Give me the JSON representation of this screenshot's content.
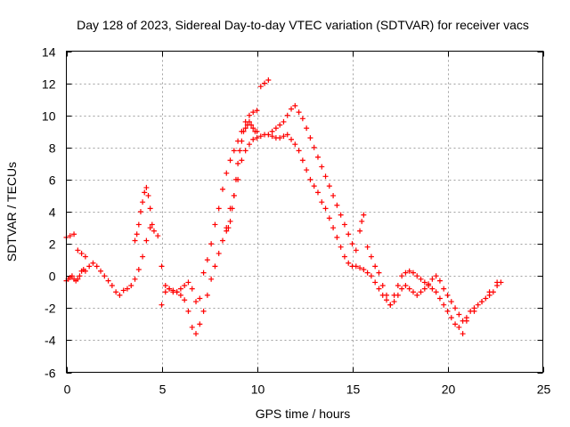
{
  "chart_data": {
    "type": "scatter",
    "title": "Day 128 of 2023, Sidereal Day-to-day VTEC variation (SDTVAR) for receiver vacs",
    "xlabel": "GPS time / hours",
    "ylabel": "SDTVAR / TECUs",
    "xlim": [
      0,
      25
    ],
    "ylim": [
      -6,
      14
    ],
    "xticks": [
      0,
      5,
      10,
      15,
      20,
      25
    ],
    "yticks": [
      -6,
      -4,
      -2,
      0,
      2,
      4,
      6,
      8,
      10,
      12,
      14
    ],
    "grid": true,
    "marker": "+",
    "color": "#ff0000",
    "series": [
      {
        "name": "SDTVAR",
        "x": [
          0.0,
          0.1,
          0.2,
          0.3,
          0.4,
          0.5,
          0.6,
          0.7,
          0.8,
          0.9,
          1.0,
          1.2,
          1.4,
          1.6,
          1.8,
          2.0,
          2.2,
          2.4,
          2.6,
          2.8,
          3.0,
          3.2,
          3.4,
          3.6,
          3.8,
          4.0,
          4.2,
          4.4,
          4.6,
          4.8,
          5.0,
          5.2,
          5.4,
          5.6,
          5.8,
          6.0,
          6.2,
          6.4,
          6.6,
          6.8,
          7.0,
          7.2,
          7.4,
          7.6,
          7.8,
          8.0,
          8.2,
          8.4,
          8.6,
          8.8,
          9.0,
          9.2,
          9.4,
          9.6,
          9.8,
          10.0,
          10.2,
          10.4,
          10.6,
          10.8,
          11.0,
          11.2,
          11.4,
          11.6,
          11.8,
          12.0,
          12.2,
          12.4,
          12.6,
          12.8,
          13.0,
          13.2,
          13.4,
          13.6,
          13.8,
          14.0,
          14.2,
          14.4,
          14.6,
          14.8,
          15.0,
          15.2,
          15.4,
          15.6,
          15.8,
          16.0,
          16.2,
          16.4,
          16.6,
          16.8,
          17.0,
          17.2,
          17.4,
          17.6,
          17.8,
          18.0,
          18.2,
          18.4,
          18.6,
          18.8,
          19.0,
          19.2,
          19.4,
          19.6,
          19.8,
          20.0,
          20.2,
          20.4,
          20.6,
          20.8,
          21.0,
          21.2,
          21.4,
          21.6,
          21.8,
          22.0,
          22.2,
          22.4,
          22.6,
          22.8,
          0.0,
          0.2,
          0.4,
          0.6,
          0.8,
          1.0,
          3.6,
          3.7,
          3.8,
          3.9,
          4.0,
          4.1,
          4.2,
          4.3,
          4.4,
          4.5,
          5.0,
          5.2,
          5.4,
          5.6,
          5.8,
          6.0,
          6.2,
          6.4,
          6.6,
          6.8,
          7.0,
          7.2,
          7.4,
          7.6,
          7.8,
          8.0,
          8.2,
          8.4,
          8.6,
          8.8,
          9.0,
          9.2,
          9.4,
          9.6,
          9.8,
          10.0,
          8.4,
          8.5,
          8.6,
          8.7,
          8.8,
          8.9,
          9.0,
          9.1,
          9.2,
          9.3,
          9.4,
          9.5,
          9.6,
          9.7,
          9.8,
          9.9,
          10.0,
          10.2,
          10.4,
          10.6,
          10.8,
          11.0,
          11.2,
          11.4,
          11.6,
          11.8,
          12.0,
          12.2,
          12.4,
          12.6,
          12.8,
          13.0,
          13.2,
          13.4,
          13.6,
          13.8,
          14.0,
          14.2,
          14.4,
          14.6,
          14.8,
          15.0,
          15.2,
          15.4,
          15.5,
          15.6,
          15.8,
          16.0,
          16.2,
          16.4,
          16.6,
          16.8,
          17.0,
          17.2,
          17.4,
          17.6,
          17.8,
          18.0,
          18.2,
          18.4,
          18.6,
          18.8,
          19.0,
          19.2,
          19.4,
          19.6,
          19.8,
          20.0,
          20.2,
          20.4,
          20.6,
          20.8,
          21.0,
          21.4,
          21.8,
          22.2,
          22.6
        ],
        "y": [
          -0.3,
          -0.2,
          -0.1,
          0.0,
          -0.2,
          -0.3,
          -0.2,
          0.0,
          0.3,
          0.4,
          0.3,
          0.6,
          0.8,
          0.6,
          0.3,
          0.0,
          -0.3,
          -0.6,
          -1.0,
          -1.2,
          -0.9,
          -0.8,
          -0.6,
          -0.2,
          0.4,
          1.2,
          2.2,
          3.0,
          2.8,
          2.5,
          -1.8,
          -1.0,
          -0.8,
          -0.9,
          -1.0,
          -1.2,
          -1.5,
          -2.2,
          -3.2,
          -3.6,
          -3.0,
          -2.2,
          -1.2,
          -0.2,
          0.6,
          1.4,
          2.2,
          3.0,
          4.2,
          5.0,
          6.0,
          7.2,
          7.8,
          8.2,
          8.5,
          8.6,
          8.7,
          8.8,
          8.8,
          8.7,
          8.6,
          8.6,
          8.7,
          8.8,
          8.5,
          8.2,
          7.8,
          7.2,
          6.6,
          6.0,
          5.6,
          5.2,
          4.6,
          4.2,
          3.6,
          3.0,
          2.4,
          1.8,
          1.2,
          0.8,
          0.6,
          0.6,
          0.5,
          0.4,
          0.2,
          0.0,
          -0.4,
          -0.8,
          -1.2,
          -1.5,
          -1.8,
          -1.6,
          -1.2,
          -0.8,
          -0.6,
          -0.8,
          -1.0,
          -1.2,
          -1.0,
          -0.8,
          -0.5,
          -0.2,
          0.0,
          -0.3,
          -0.8,
          -1.2,
          -1.6,
          -2.0,
          -2.4,
          -2.8,
          -2.6,
          -2.2,
          -2.0,
          -1.8,
          -1.6,
          -1.4,
          -1.2,
          -1.0,
          -0.6,
          -0.4,
          2.4,
          2.5,
          2.6,
          1.6,
          1.4,
          1.2,
          2.2,
          2.6,
          3.2,
          4.0,
          4.6,
          5.2,
          5.5,
          5.0,
          4.2,
          3.2,
          0.6,
          -0.6,
          -0.8,
          -1.0,
          -1.0,
          -0.8,
          -0.6,
          -0.4,
          -0.8,
          -1.6,
          -1.4,
          0.2,
          1.0,
          2.0,
          3.2,
          4.2,
          5.4,
          6.4,
          7.2,
          7.8,
          8.4,
          9.0,
          9.6,
          10.0,
          10.2,
          10.3,
          2.8,
          3.0,
          3.4,
          4.2,
          5.0,
          6.0,
          7.0,
          7.8,
          8.4,
          9.0,
          9.2,
          9.4,
          9.6,
          9.4,
          9.2,
          9.0,
          9.0,
          11.8,
          12.0,
          12.2,
          9.0,
          9.2,
          9.4,
          9.6,
          10.0,
          10.4,
          10.6,
          10.2,
          9.8,
          9.2,
          8.6,
          8.0,
          7.4,
          6.8,
          6.2,
          5.6,
          5.0,
          4.4,
          3.8,
          3.2,
          2.6,
          2.0,
          1.6,
          2.8,
          3.4,
          3.8,
          1.8,
          1.2,
          0.6,
          0.2,
          -0.6,
          -1.2,
          -1.8,
          -1.2,
          -0.6,
          0.0,
          0.2,
          0.3,
          0.2,
          0.0,
          -0.2,
          -0.4,
          -0.6,
          -0.8,
          -1.0,
          -1.4,
          -1.8,
          -2.2,
          -2.6,
          -3.0,
          -3.2,
          -3.6,
          -2.8,
          -2.2,
          -1.6,
          -1.0,
          -0.4
        ]
      }
    ]
  }
}
